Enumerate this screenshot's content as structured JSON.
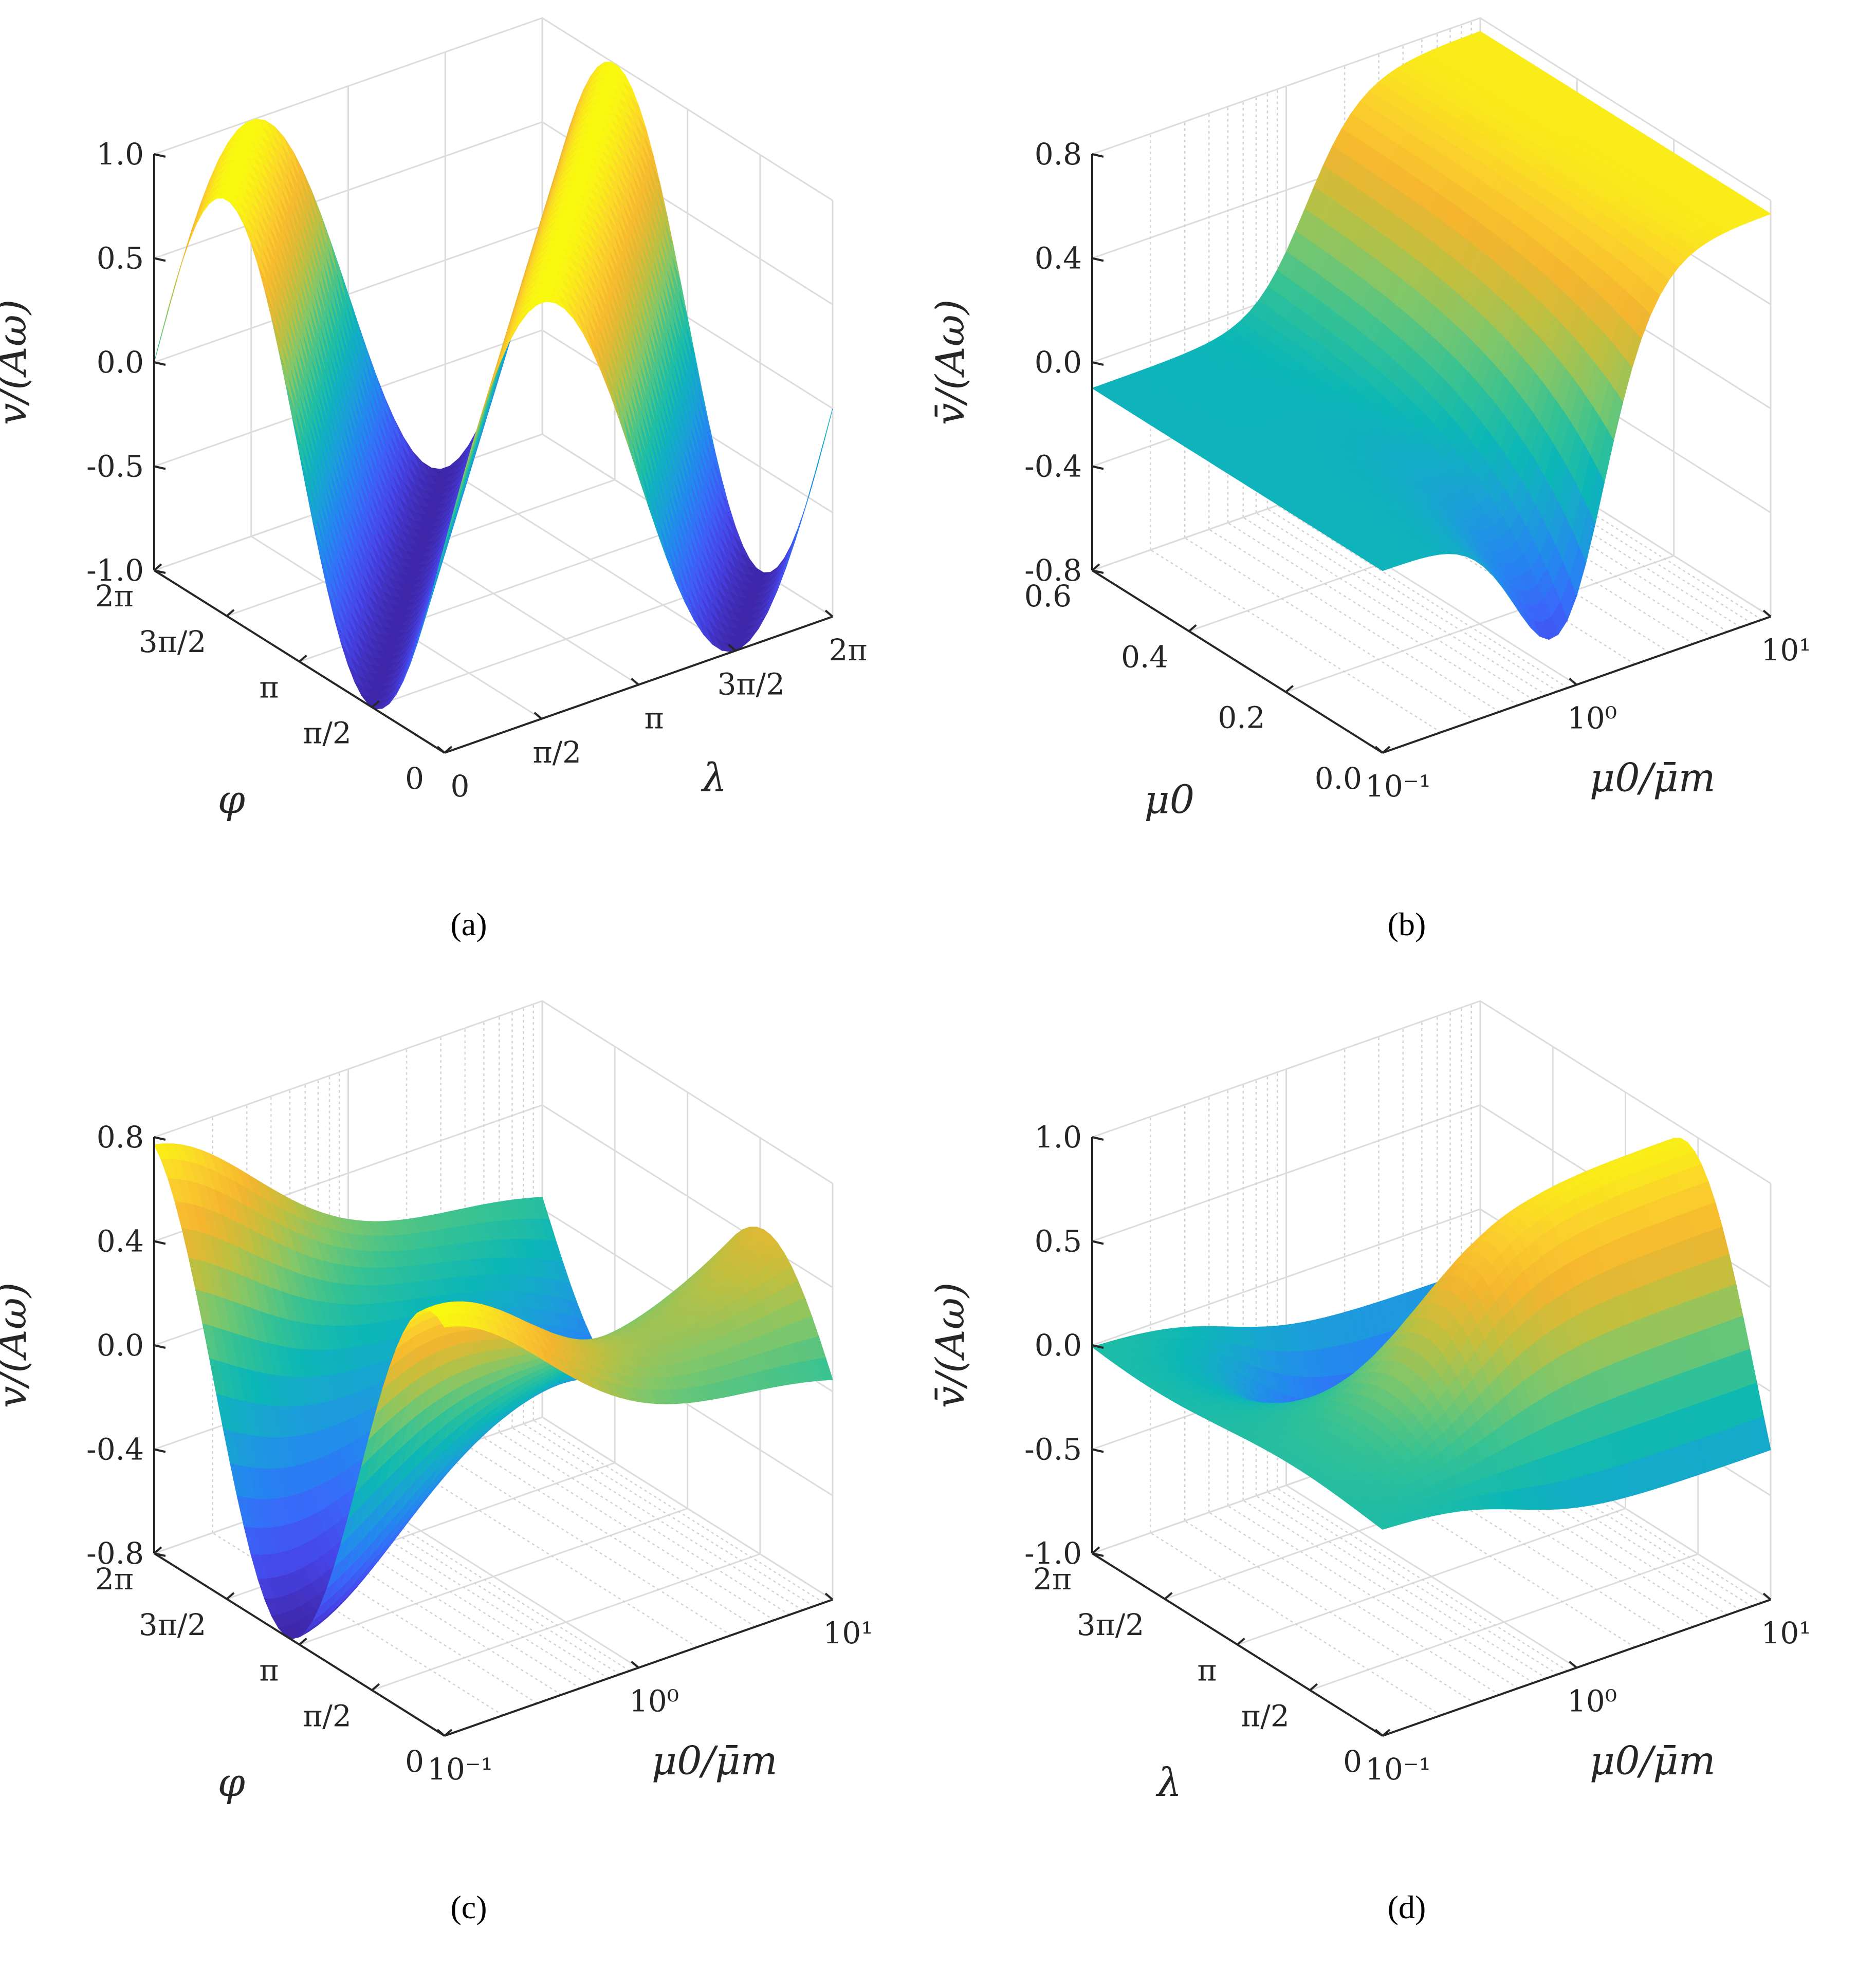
{
  "colormap": [
    "#3e26a8",
    "#4744e8",
    "#3a66f9",
    "#2487f0",
    "#1aa2d5",
    "#0cb7b6",
    "#35c294",
    "#7ec76b",
    "#c2bf3e",
    "#f5b52f",
    "#fbd12c",
    "#f9fb0e"
  ],
  "chart_data": [
    {
      "panel": "a",
      "caption": "(a)",
      "type": "surface",
      "zlabel": "v̄/(Aω)",
      "xlabel": "λ",
      "ylabel": "φ",
      "zlim": [
        -1.0,
        1.0
      ],
      "z_ticks": [
        "1.0",
        "0.5",
        "0.0",
        "-0.5",
        "-1.0"
      ],
      "x_ticks": [
        "0",
        "π/2",
        "π",
        "3π/2",
        "2π"
      ],
      "y_ticks": [
        "0",
        "π/2",
        "π",
        "3π/2",
        "2π"
      ],
      "x_scale": "linear",
      "x_range": [
        0,
        6.2832
      ],
      "y_range": [
        0,
        6.2832
      ],
      "grid": true,
      "surface": "v̄/(Aω) ≈ sin(λ − φ) for φ < λ, sin(λ − φ)·(1 − 0.1) for φ > λ; ridge +1.0 along λ − φ = π/2, trough -1.0 along λ − φ = −π/2"
    },
    {
      "panel": "b",
      "caption": "(b)",
      "type": "surface",
      "zlabel": "v̄/(Aω)",
      "xlabel": "μ0/μ̄m",
      "ylabel": "μ0",
      "zlim": [
        -0.8,
        0.8
      ],
      "z_ticks": [
        "0.8",
        "0.4",
        "0.0",
        "-0.4",
        "-0.8"
      ],
      "x_ticks": [
        "10⁻¹",
        "10⁰",
        "10¹"
      ],
      "y_ticks": [
        "0.0",
        "0.2",
        "0.4",
        "0.6"
      ],
      "x_scale": "log",
      "x_range": [
        0.1,
        10
      ],
      "y_range": [
        0,
        0.6
      ],
      "grid": true,
      "surface": "step in μ0/μ̄m near 10⁰; rises to about 0.75 for large μ0/μ̄m, dips to about -0.8 at μ0 = 0 near 10⁰"
    },
    {
      "panel": "c",
      "caption": "(c)",
      "type": "surface",
      "zlabel": "v̄/(Aω)",
      "xlabel": "μ0/μ̄m",
      "ylabel": "φ",
      "zlim": [
        -0.8,
        0.8
      ],
      "z_ticks": [
        "0.8",
        "0.4",
        "0.0",
        "-0.4",
        "-0.8"
      ],
      "x_ticks": [
        "10⁻¹",
        "10⁰",
        "10¹"
      ],
      "y_ticks": [
        "0",
        "π/2",
        "π",
        "3π/2",
        "2π"
      ],
      "x_scale": "log",
      "x_range": [
        0.1,
        10
      ],
      "y_range": [
        0,
        6.2832
      ],
      "grid": true,
      "surface": "sinusoidal in φ with amplitude about 0.8 at small μ0/μ̄m, flattening to 0 around 10⁰, minimum near -0.8"
    },
    {
      "panel": "d",
      "caption": "(d)",
      "type": "surface",
      "zlabel": "v̄/(Aω)",
      "xlabel": "μ0/μ̄m",
      "ylabel": "λ",
      "zlim": [
        -1.0,
        1.0
      ],
      "z_ticks": [
        "1.0",
        "0.5",
        "0.0",
        "-0.5",
        "-1.0"
      ],
      "x_ticks": [
        "10⁻¹",
        "10⁰",
        "10¹"
      ],
      "y_ticks": [
        "0",
        "π/2",
        "π",
        "3π/2",
        "2π"
      ],
      "x_scale": "log",
      "x_range": [
        0.1,
        10
      ],
      "y_range": [
        0,
        6.2832
      ],
      "grid": true,
      "surface": "near 0 for small μ0/μ̄m, develops sin-like dependence in λ with extremes ±1.0 for large μ0/μ̄m, trough near -1.0"
    }
  ]
}
